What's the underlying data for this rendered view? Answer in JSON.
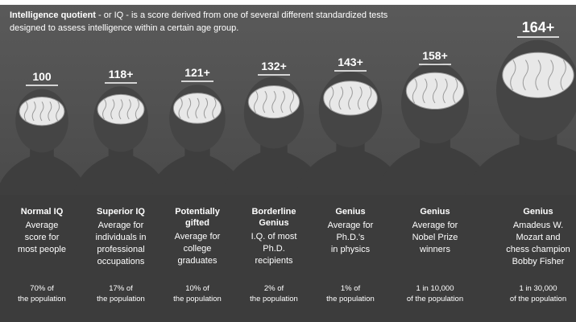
{
  "intro": {
    "lead": "Intelligence quotient",
    "line1": " - or IQ - is a score derived from one of several different standardized tests",
    "line2": "designed to assess intelligence within a certain age group."
  },
  "columns": [
    {
      "iq": "100",
      "category": [
        "Normal IQ"
      ],
      "description": [
        "Average",
        "score for",
        "most people"
      ],
      "share": [
        "70% of",
        "the population"
      ]
    },
    {
      "iq": "118+",
      "category": [
        "Superior IQ"
      ],
      "description": [
        "Average for",
        "individuals in",
        "professional",
        "occupations"
      ],
      "share": [
        "17% of",
        "the population"
      ]
    },
    {
      "iq": "121+",
      "category": [
        "Potentially",
        "gifted"
      ],
      "description": [
        "Average for",
        "college",
        "graduates"
      ],
      "share": [
        "10% of",
        "the population"
      ]
    },
    {
      "iq": "132+",
      "category": [
        "Borderline",
        "Genius"
      ],
      "description": [
        "I.Q. of most",
        "Ph.D.",
        "recipients"
      ],
      "share": [
        "2% of",
        "the population"
      ]
    },
    {
      "iq": "143+",
      "category": [
        "Genius"
      ],
      "description": [
        "Average for",
        "Ph.D.'s",
        "in physics"
      ],
      "share": [
        "1% of",
        "the population"
      ]
    },
    {
      "iq": "158+",
      "category": [
        "Genius"
      ],
      "description": [
        "Average for",
        "Nobel Prize",
        "winners"
      ],
      "share": [
        "1 in 10,000",
        "of the population"
      ]
    },
    {
      "iq": "164+",
      "category": [
        "Genius"
      ],
      "description": [
        "Amadeus W.",
        "Mozart and",
        "chess champion",
        "Bobby Fisher"
      ],
      "share": [
        "1 in 30,000",
        "of the population"
      ]
    }
  ]
}
